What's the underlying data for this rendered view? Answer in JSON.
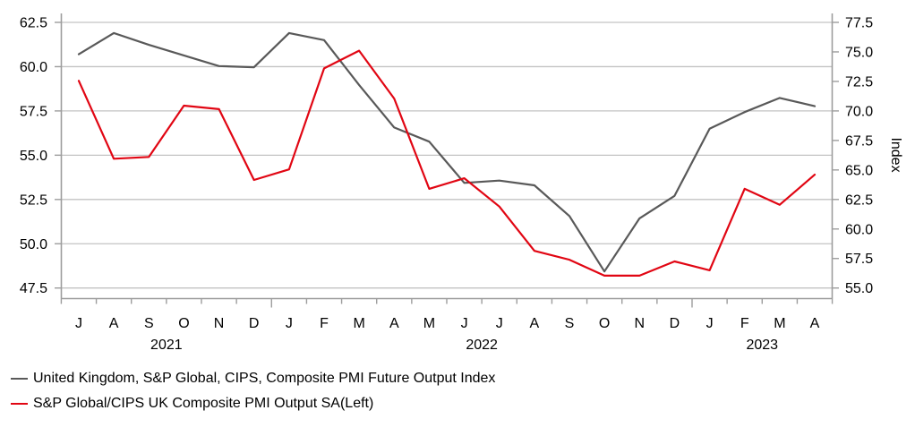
{
  "chart_data": {
    "type": "line",
    "title": "",
    "x_months": [
      "J",
      "A",
      "S",
      "O",
      "N",
      "D",
      "J",
      "F",
      "M",
      "A",
      "M",
      "J",
      "J",
      "A",
      "S",
      "O",
      "N",
      "D",
      "J",
      "F",
      "M",
      "A"
    ],
    "year_groups": [
      {
        "label": "2021",
        "start": 0,
        "end": 5
      },
      {
        "label": "2022",
        "start": 6,
        "end": 17
      },
      {
        "label": "2023",
        "start": 18,
        "end": 21
      }
    ],
    "left_axis": {
      "min": 47.5,
      "max": 62.5,
      "step": 2.5,
      "ticks": [
        "62.5",
        "60.0",
        "57.5",
        "55.0",
        "52.5",
        "50.0",
        "47.5"
      ],
      "tick_values": [
        62.5,
        60.0,
        57.5,
        55.0,
        52.5,
        50.0,
        47.5
      ]
    },
    "right_axis": {
      "min": 55.0,
      "max": 77.5,
      "step": 2.5,
      "label": "Index",
      "ticks": [
        "77.5",
        "75.0",
        "72.5",
        "70.0",
        "67.5",
        "65.0",
        "62.5",
        "60.0",
        "57.5",
        "55.0"
      ],
      "tick_values": [
        77.5,
        75.0,
        72.5,
        70.0,
        67.5,
        65.0,
        62.5,
        60.0,
        57.5,
        55.0
      ]
    },
    "series": [
      {
        "name": "United Kingdom, S&P Global, CIPS, Composite PMI Future Output Index",
        "axis": "right",
        "color": "#595959",
        "values": [
          74.8,
          76.6,
          75.6,
          74.7,
          73.8,
          73.7,
          76.6,
          76.0,
          72.2,
          68.6,
          67.4,
          63.9,
          64.1,
          63.7,
          61.1,
          56.4,
          60.9,
          62.8,
          68.5,
          69.9,
          71.1,
          70.4
        ]
      },
      {
        "name": "S&P Global/CIPS UK Composite PMI Output SA(Left)",
        "axis": "left",
        "color": "#e10613",
        "values": [
          59.2,
          54.8,
          54.9,
          57.8,
          57.6,
          53.6,
          54.2,
          59.9,
          60.9,
          58.2,
          53.1,
          53.7,
          52.1,
          49.6,
          49.1,
          48.2,
          48.2,
          49.0,
          48.5,
          53.1,
          52.2,
          53.9
        ]
      }
    ],
    "grid": true,
    "legend_position": "bottom-left",
    "colors": {
      "gridline": "#c3c3c3",
      "axis": "#9d9d9d",
      "tick_text": "#000000"
    }
  }
}
